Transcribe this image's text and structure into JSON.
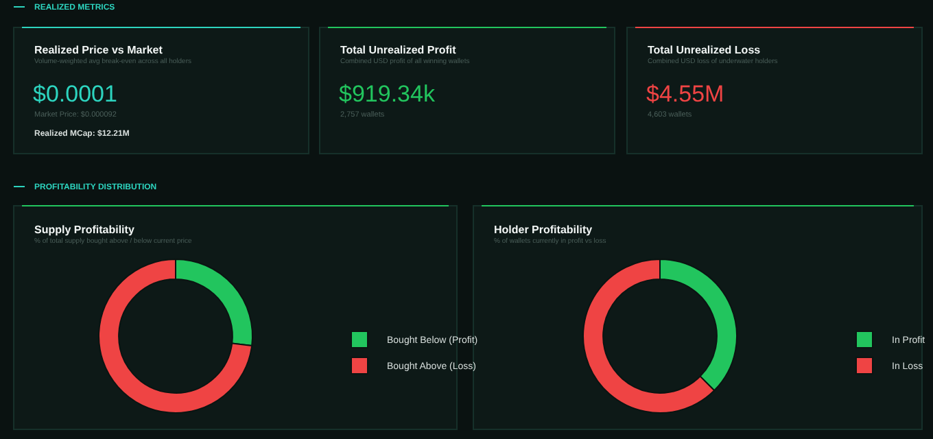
{
  "chart_data": [
    {
      "type": "other",
      "title": "REALIZED METRICS"
    },
    {
      "type": "other",
      "title": "Realized Price vs Market",
      "subtitle": "Volume-weighted avg break-even across all holders",
      "annotations": [
        "$0.0001",
        "Market Price: $0.000092",
        "Realized MCap: $12.21M"
      ]
    },
    {
      "type": "other",
      "title": "Total Unrealized Profit",
      "subtitle": "Combined USD profit of all winning wallets",
      "annotations": [
        "$919.34k",
        "2,757 wallets"
      ]
    },
    {
      "type": "other",
      "title": "Total Unrealized Loss",
      "subtitle": "Combined USD loss of underwater holders",
      "annotations": [
        "$4.55M",
        "4,603 wallets"
      ]
    },
    {
      "type": "other",
      "title": "PROFITABILITY DISTRIBUTION"
    },
    {
      "type": "donut",
      "title": "Supply Profitability",
      "subtitle": "% of total supply bought above / below current price",
      "categories": [
        "Bought Below (Profit)",
        "Bought Above (Loss)"
      ],
      "values": [
        27,
        73
      ],
      "colors": [
        "#22c55e",
        "#ef4444"
      ],
      "legend": "right"
    },
    {
      "type": "donut",
      "title": "Holder Profitability",
      "subtitle": "% of wallets currently in profit vs loss",
      "categories": [
        "In Profit",
        "In Loss"
      ],
      "values": [
        37.5,
        62.5
      ],
      "colors": [
        "#22c55e",
        "#ef4444"
      ],
      "legend": "right"
    }
  ]
}
